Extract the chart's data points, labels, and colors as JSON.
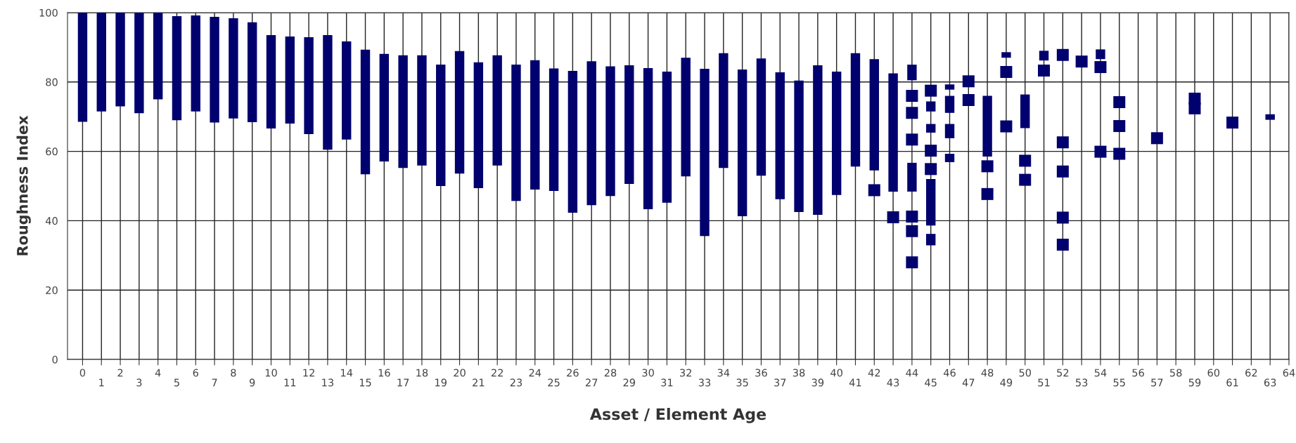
{
  "chart_data": {
    "type": "bar",
    "xlabel": "Asset / Element Age",
    "ylabel": "Roughness Index",
    "xlim": [
      -0.8,
      64
    ],
    "ylim": [
      0,
      100
    ],
    "xticks": [
      0,
      {
        "value": 1,
        "label": null
      },
      2,
      {
        "value": 3,
        "label": null
      },
      4,
      {
        "value": 5,
        "label": null
      },
      6,
      {
        "value": 7,
        "label": null
      },
      8,
      {
        "value": 9,
        "label": null
      },
      10,
      {
        "value": 11,
        "label": null
      },
      12,
      {
        "value": 13,
        "label": null
      },
      14,
      {
        "value": 15,
        "label": null
      },
      16,
      {
        "value": 17,
        "label": null
      },
      18,
      {
        "value": 19,
        "label": null
      },
      20,
      {
        "value": 21,
        "label": null
      },
      22,
      {
        "value": 23,
        "label": null
      },
      24,
      {
        "value": 25,
        "label": null
      },
      26,
      {
        "value": 27,
        "label": null
      },
      28,
      {
        "value": 29,
        "label": null
      },
      30,
      {
        "value": 31,
        "label": null
      },
      32,
      {
        "value": 33,
        "label": null
      },
      34,
      {
        "value": 35,
        "label": null
      },
      36,
      {
        "value": 37,
        "label": null
      },
      38,
      {
        "value": 39,
        "label": null
      },
      40,
      {
        "value": 41,
        "label": null
      },
      42,
      {
        "value": 43,
        "label": null
      },
      44,
      {
        "value": 45,
        "label": null
      },
      46,
      {
        "value": 47,
        "label": null
      },
      48,
      {
        "value": 49,
        "label": null
      },
      50,
      {
        "value": 51,
        "label": null
      },
      52,
      {
        "value": 53,
        "label": null
      },
      54,
      {
        "value": 55,
        "label": null
      },
      56,
      {
        "value": 57,
        "label": null
      },
      58,
      {
        "value": 59,
        "label": null
      },
      60,
      {
        "value": 61,
        "label": null
      },
      62,
      {
        "value": 63,
        "label": null
      },
      64
    ],
    "x2lim": [
      -0.8,
      64
    ],
    "x2ticks": [
      1,
      3,
      5,
      7,
      9,
      11,
      13,
      15,
      17,
      19,
      21,
      23,
      25,
      27,
      29,
      31,
      33,
      35,
      37,
      39,
      41,
      43,
      45,
      47,
      49,
      51,
      53,
      55,
      57,
      59,
      61,
      63
    ],
    "yticks": [
      0,
      20,
      40,
      60,
      80,
      100
    ],
    "grid": true,
    "marker": "square",
    "series": [
      {
        "color": "#00006e",
        "x": [
          0,
          1,
          2,
          3,
          4,
          5,
          6,
          7,
          8,
          9,
          10,
          11,
          12,
          13,
          14,
          15,
          16,
          17,
          18,
          19,
          20,
          21,
          22,
          23,
          24,
          25,
          26,
          27,
          28,
          29,
          30,
          31,
          32,
          33,
          34,
          35,
          36,
          37,
          38,
          39,
          40,
          41,
          42,
          43,
          44,
          45,
          46,
          48,
          49,
          50,
          51,
          54,
          63
        ],
        "base": [
          68.5,
          71.5,
          73,
          71,
          75,
          69,
          71.5,
          68.3,
          69.5,
          68.4,
          66.6,
          68,
          65,
          60.5,
          63.4,
          53.4,
          57.1,
          55.2,
          55.9,
          50,
          53.6,
          49.4,
          55.9,
          45.7,
          49,
          48.6,
          42.3,
          44.5,
          47.1,
          50.6,
          43.3,
          45.2,
          52.8,
          35.6,
          55.2,
          41.3,
          53,
          46.2,
          42.5,
          41.7,
          47.4,
          55.6,
          54.5,
          48.4,
          80.5,
          71.5,
          77.8,
          58.5,
          87,
          66.7,
          86.2,
          86.6,
          69.1
        ],
        "values": [
          31.5,
          28.5,
          27,
          29,
          25,
          30,
          27.7,
          30.5,
          28.9,
          28.8,
          26.9,
          25.1,
          27.9,
          33,
          28.3,
          35.9,
          31,
          32.5,
          31.8,
          35,
          35.3,
          36.3,
          31.8,
          39.3,
          37.3,
          35.3,
          40.9,
          41.5,
          37.4,
          34.2,
          40.7,
          37.8,
          34.2,
          48.2,
          33.1,
          42.3,
          33.8,
          36.6,
          37.9,
          43.1,
          35.6,
          32.7,
          32.1,
          34.1,
          4.5,
          2.9,
          1.5,
          17.5,
          1.6,
          9.7,
          2.8,
          2.8,
          1.6
        ]
      },
      {
        "color": "#00006e",
        "x": [
          44,
          45,
          46
        ],
        "base": [
          48.4,
          65.4,
          71.1
        ],
        "values": [
          8.3,
          2.5,
          4.9
        ]
      },
      {
        "color": "#00006e",
        "x": [
          45,
          46
        ],
        "base": [
          38.6,
          63.8
        ],
        "values": [
          13.4,
          4.1
        ]
      },
      {
        "color": "#00006e",
        "x": [
          45,
          46
        ],
        "base": [
          32.9,
          56.9
        ],
        "values": [
          3.3,
          2.4
        ]
      },
      {
        "type": "scatter",
        "color": "#00006e",
        "x": [
          42,
          43,
          44,
          44,
          44,
          44,
          44,
          44,
          45,
          45,
          45,
          47,
          47,
          48,
          48,
          49,
          49,
          50,
          50,
          51,
          52,
          52,
          52,
          52,
          52,
          53,
          54,
          54,
          55,
          55,
          55,
          57,
          59,
          59,
          61
        ],
        "values": [
          48.8,
          41,
          76,
          71.1,
          63.4,
          41.2,
          37,
          28,
          77.5,
          60.2,
          54.9,
          80.2,
          74.8,
          55.7,
          47.7,
          82.9,
          67.2,
          57.3,
          51.8,
          83.3,
          87.8,
          62.6,
          54.2,
          40.9,
          33.1,
          85.9,
          84.3,
          59.9,
          74.2,
          67.3,
          59.3,
          63.8,
          75.2,
          72.4,
          68.3
        ]
      }
    ]
  }
}
